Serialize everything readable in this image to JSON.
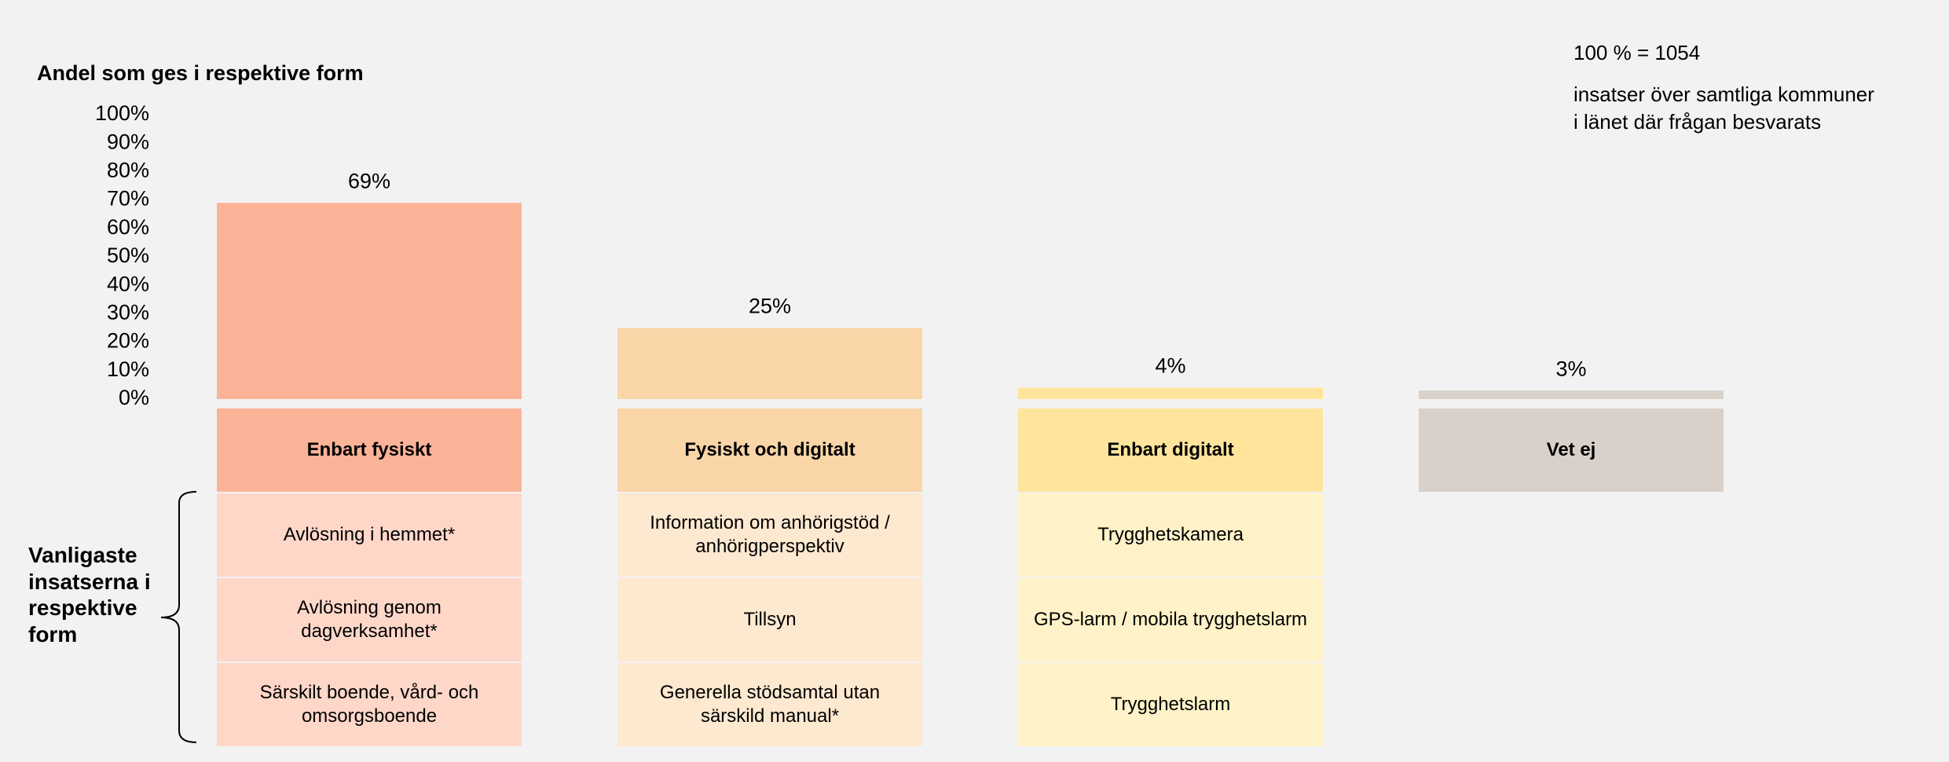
{
  "chart_data": {
    "type": "bar",
    "title": "Andel som ges i respektive form",
    "categories": [
      "Enbart fysiskt",
      "Fysiskt och digitalt",
      "Enbart digitalt",
      "Vet ej"
    ],
    "values": [
      69,
      25,
      4,
      3
    ],
    "value_labels": [
      "69%",
      "25%",
      "4%",
      "3%"
    ],
    "colors": [
      "#fbb398",
      "#fad5a8",
      "#ffe49c",
      "#d9d0ca"
    ],
    "row_colors": [
      "#fed7c9",
      "#fde8d0",
      "#fff2c8",
      "#f2f2f2"
    ],
    "ylim": [
      0,
      100
    ],
    "yticks": [
      {
        "value": 0,
        "label": "0%"
      },
      {
        "value": 10,
        "label": "10%"
      },
      {
        "value": 20,
        "label": "20%"
      },
      {
        "value": 30,
        "label": "30%"
      },
      {
        "value": 40,
        "label": "40%"
      },
      {
        "value": 50,
        "label": "50%"
      },
      {
        "value": 60,
        "label": "60%"
      },
      {
        "value": 70,
        "label": "70%"
      },
      {
        "value": 80,
        "label": "80%"
      },
      {
        "value": 90,
        "label": "90%"
      },
      {
        "value": 100,
        "label": "100%"
      }
    ],
    "grid": false,
    "annotation": {
      "total": "100 % = 1054",
      "lines": [
        "insatser över samtliga kommuner",
        "i länet där frågan besvarats"
      ]
    },
    "table": {
      "label": "Vanligaste insatserna i respektive form",
      "items": [
        [
          "Avlösning i hemmet*",
          "Avlösning genom dagverksamhet*",
          "Särskilt boende, vård- och omsorgsboende"
        ],
        [
          "Information om anhörigstöd / anhörigperspektiv",
          "Tillsyn",
          "Generella stödsamtal utan särskild manual*"
        ],
        [
          "Trygghetskamera",
          "GPS-larm / mobila trygghetslarm",
          "Trygghetslarm"
        ],
        []
      ]
    }
  }
}
